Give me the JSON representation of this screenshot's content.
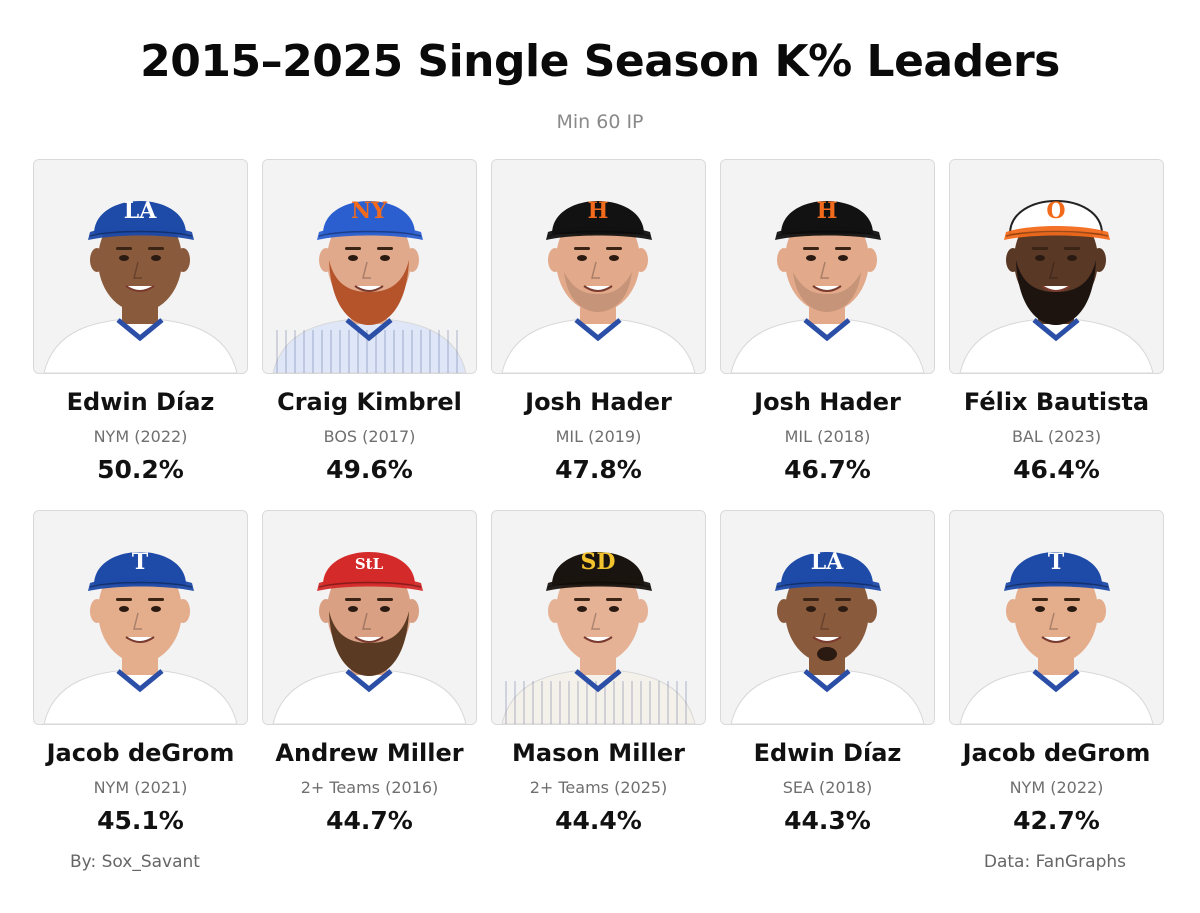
{
  "title": "2015–2025 Single Season K% Leaders",
  "subtitle": "Min 60 IP",
  "players": [
    {
      "name": "Edwin Díaz",
      "team": "NYM (2022)",
      "k_pct": "50.2%",
      "cap_color": "#1e4aa8",
      "cap_logo": "LA",
      "logo_color": "#ffffff",
      "skin": "#8a5a3c",
      "jersey": "#ffffff",
      "beard": "none"
    },
    {
      "name": "Craig Kimbrel",
      "team": "BOS (2017)",
      "k_pct": "49.6%",
      "cap_color": "#2b5fd0",
      "cap_logo": "NY",
      "logo_color": "#f26a1b",
      "skin": "#e0a98c",
      "jersey": "#dfe6f7",
      "beard": "red"
    },
    {
      "name": "Josh Hader",
      "team": "MIL (2019)",
      "k_pct": "47.8%",
      "cap_color": "#121212",
      "cap_logo": "H",
      "logo_color": "#f26a1b",
      "skin": "#e2a98a",
      "jersey": "#ffffff",
      "beard": "stubble"
    },
    {
      "name": "Josh Hader",
      "team": "MIL (2018)",
      "k_pct": "46.7%",
      "cap_color": "#121212",
      "cap_logo": "H",
      "logo_color": "#f26a1b",
      "skin": "#e2a98a",
      "jersey": "#ffffff",
      "beard": "stubble"
    },
    {
      "name": "Félix Bautista",
      "team": "BAL (2023)",
      "k_pct": "46.4%",
      "cap_color": "#ffffff",
      "cap_logo": "O",
      "logo_color": "#f26a1b",
      "skin": "#5a3826",
      "jersey": "#ffffff",
      "beard": "black"
    },
    {
      "name": "Jacob deGrom",
      "team": "NYM (2021)",
      "k_pct": "45.1%",
      "cap_color": "#1e4aa8",
      "cap_logo": "T",
      "logo_color": "#ffffff",
      "skin": "#e4ad8c",
      "jersey": "#ffffff",
      "beard": "none"
    },
    {
      "name": "Andrew Miller",
      "team": "2+ Teams (2016)",
      "k_pct": "44.7%",
      "cap_color": "#d42a2a",
      "cap_logo": "StL",
      "logo_color": "#ffffff",
      "skin": "#d9a083",
      "jersey": "#ffffff",
      "beard": "brown"
    },
    {
      "name": "Mason Miller",
      "team": "2+ Teams (2025)",
      "k_pct": "44.4%",
      "cap_color": "#1a1410",
      "cap_logo": "SD",
      "logo_color": "#f3c32e",
      "skin": "#e6b296",
      "jersey": "#f4f1ea",
      "beard": "none"
    },
    {
      "name": "Edwin Díaz",
      "team": "SEA (2018)",
      "k_pct": "44.3%",
      "cap_color": "#1e4aa8",
      "cap_logo": "LA",
      "logo_color": "#ffffff",
      "skin": "#8a5a3c",
      "jersey": "#ffffff",
      "beard": "goatee"
    },
    {
      "name": "Jacob deGrom",
      "team": "NYM (2022)",
      "k_pct": "42.7%",
      "cap_color": "#1e4aa8",
      "cap_logo": "T",
      "logo_color": "#ffffff",
      "skin": "#e4ad8c",
      "jersey": "#ffffff",
      "beard": "none"
    }
  ],
  "footer": {
    "author": "By: Sox_Savant",
    "source": "Data: FanGraphs"
  }
}
